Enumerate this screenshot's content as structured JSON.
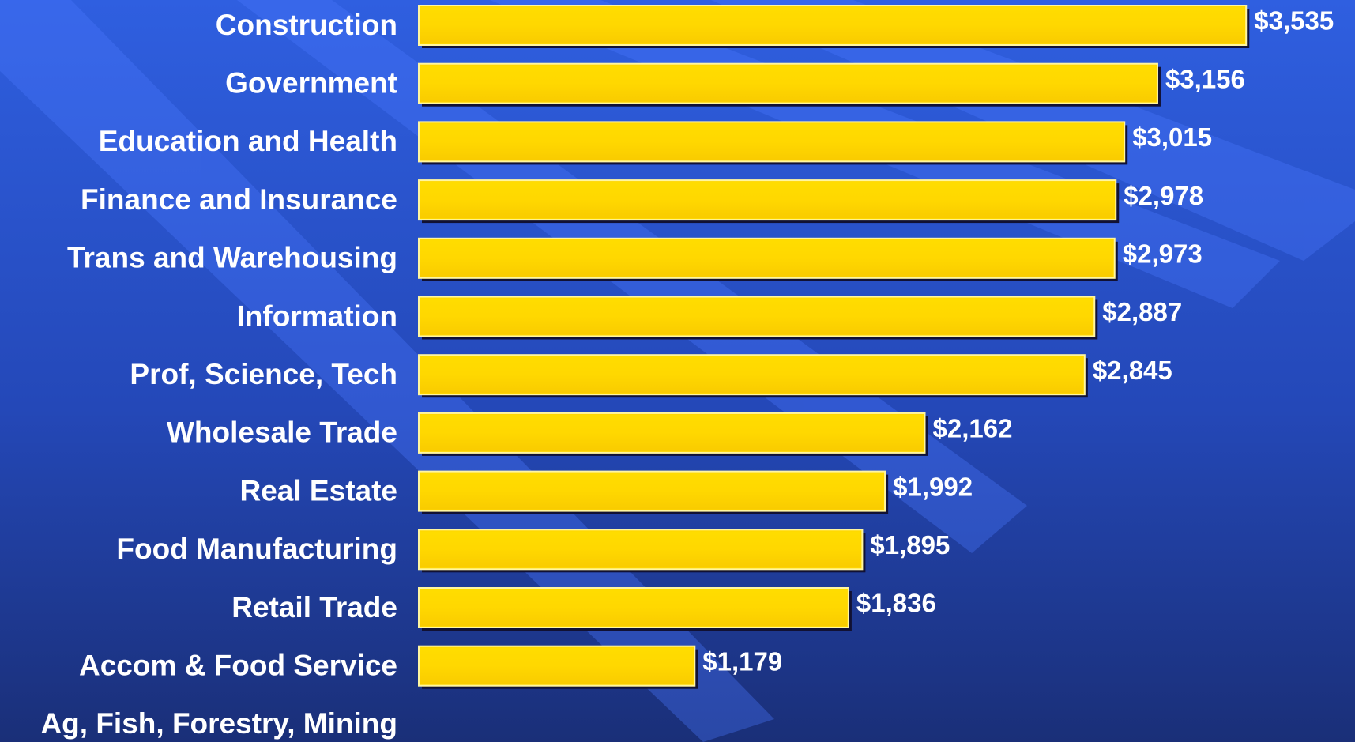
{
  "chart_data": {
    "type": "bar",
    "orientation": "horizontal",
    "categories": [
      "Construction",
      "Government",
      "Education and Health",
      "Finance and Insurance",
      "Trans and Warehousing",
      "Information",
      "Prof, Science, Tech",
      "Wholesale Trade",
      "Real Estate",
      "Food Manufacturing",
      "Retail Trade",
      "Accom & Food Service",
      "Ag, Fish, Forestry, Mining"
    ],
    "values": [
      3535,
      3156,
      3015,
      2978,
      2973,
      2887,
      2845,
      2162,
      1992,
      1895,
      1836,
      1179,
      null
    ],
    "value_labels": [
      "$3,535",
      "$3,156",
      "$3,015",
      "$2,978",
      "$2,973",
      "$2,887",
      "$2,845",
      "$2,162",
      "$1,992",
      "$1,895",
      "$1,836",
      "$1,179",
      null
    ],
    "color": "#ffd700",
    "xlim": [
      0,
      4000
    ]
  }
}
